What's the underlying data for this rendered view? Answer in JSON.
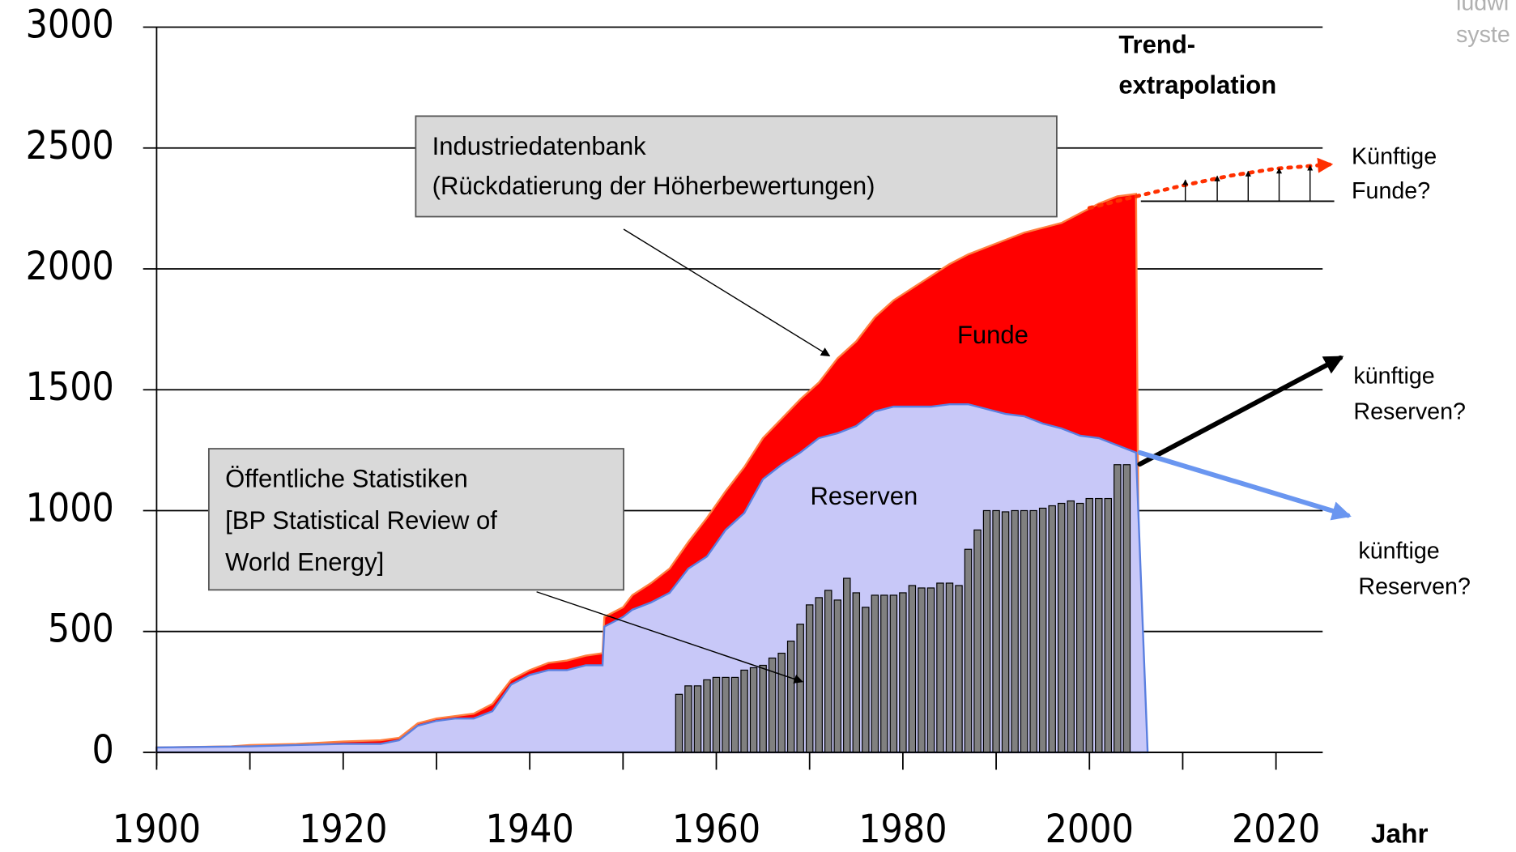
{
  "chart_data": {
    "type": "area",
    "xlim": [
      1900,
      2025
    ],
    "ylim": [
      0,
      3000
    ],
    "xticks": [
      1900,
      1920,
      1940,
      1960,
      1980,
      2000,
      2020
    ],
    "xminorticks": [
      1910,
      1930,
      1950,
      1970,
      1990,
      2010
    ],
    "yticks": [
      0,
      500,
      1000,
      1500,
      2000,
      2500,
      3000
    ],
    "grid": true,
    "x_label": "Jahr",
    "watermark": [
      "ludwi",
      "syste"
    ],
    "series": [
      {
        "name": "Funde",
        "color": "#ff0000",
        "x": [
          1900,
          1908,
          1910,
          1915,
          1920,
          1924,
          1926,
          1928,
          1930,
          1932,
          1934,
          1936,
          1938,
          1940,
          1942,
          1944,
          1946,
          1947.8,
          1948,
          1950,
          1951,
          1953,
          1955,
          1957,
          1959,
          1961,
          1963,
          1965,
          1967,
          1969,
          1971,
          1973,
          1975,
          1977,
          1979,
          1981,
          1983,
          1985,
          1987,
          1989,
          1991,
          1993,
          1995,
          1997,
          1999,
          2001,
          2003,
          2005
        ],
        "values": [
          20,
          25,
          30,
          35,
          45,
          50,
          60,
          120,
          140,
          150,
          160,
          200,
          300,
          340,
          370,
          380,
          400,
          410,
          560,
          600,
          650,
          700,
          760,
          870,
          970,
          1080,
          1180,
          1300,
          1380,
          1460,
          1530,
          1630,
          1700,
          1800,
          1870,
          1920,
          1970,
          2020,
          2060,
          2090,
          2120,
          2150,
          2170,
          2190,
          2230,
          2270,
          2300,
          2310
        ]
      },
      {
        "name": "Reserven",
        "color": "#c8c8f8",
        "x": [
          1900,
          1910,
          1915,
          1920,
          1924,
          1926,
          1928,
          1930,
          1932,
          1934,
          1936,
          1938,
          1940,
          1942,
          1944,
          1946,
          1947.8,
          1948,
          1950,
          1951,
          1953,
          1955,
          1957,
          1959,
          1961,
          1963,
          1965,
          1967,
          1969,
          1971,
          1973,
          1975,
          1977,
          1979,
          1981,
          1983,
          1985,
          1987,
          1989,
          1991,
          1993,
          1995,
          1997,
          1999,
          2001,
          2003,
          2005
        ],
        "values": [
          20,
          25,
          30,
          35,
          35,
          50,
          110,
          130,
          140,
          140,
          170,
          280,
          320,
          340,
          340,
          360,
          360,
          520,
          560,
          590,
          620,
          660,
          760,
          810,
          920,
          990,
          1130,
          1190,
          1240,
          1300,
          1320,
          1350,
          1410,
          1430,
          1430,
          1430,
          1440,
          1440,
          1420,
          1400,
          1390,
          1360,
          1340,
          1310,
          1300,
          1270,
          1240
        ]
      }
    ],
    "bars": {
      "x": [
        1956,
        1957,
        1958,
        1959,
        1960,
        1961,
        1962,
        1963,
        1964,
        1965,
        1966,
        1967,
        1968,
        1969,
        1970,
        1971,
        1972,
        1973,
        1974,
        1975,
        1976,
        1977,
        1978,
        1979,
        1980,
        1981,
        1982,
        1983,
        1984,
        1985,
        1986,
        1987,
        1988,
        1989,
        1990,
        1991,
        1992,
        1993,
        1994,
        1995,
        1996,
        1997,
        1998,
        1999,
        2000,
        2001,
        2002,
        2003,
        2004
      ],
      "values": [
        240,
        275,
        275,
        300,
        310,
        310,
        310,
        340,
        350,
        360,
        390,
        410,
        460,
        530,
        610,
        640,
        670,
        630,
        720,
        660,
        600,
        650,
        650,
        650,
        660,
        690,
        680,
        680,
        700,
        700,
        690,
        840,
        920,
        1000,
        1000,
        995,
        1000,
        1000,
        1000,
        1010,
        1020,
        1030,
        1040,
        1030,
        1050,
        1050,
        1050,
        1190,
        1190
      ],
      "color": "#808080"
    },
    "trends": [
      {
        "color": "#ff3000",
        "style": "dotted",
        "x": [
          2000,
          2005,
          2010,
          2015,
          2020,
          2025.8
        ],
        "values": [
          2252,
          2300,
          2345,
          2385,
          2415,
          2432
        ]
      },
      {
        "color": "#000000",
        "style": "solid",
        "x": [
          2005.4,
          2026.9
        ],
        "values": [
          1192,
          1632
        ]
      },
      {
        "color": "#6a96f0",
        "style": "solid",
        "x": [
          2005.4,
          2027.7
        ],
        "values": [
          1240,
          980
        ]
      }
    ],
    "annotations": {
      "trend_title": [
        "Trend-",
        "extrapolation"
      ],
      "future_finds": [
        "Künftige",
        "Funde?"
      ],
      "future_reserves_1": [
        "künftige",
        "Reserven?"
      ],
      "future_reserves_2": [
        "künftige",
        "Reserven?"
      ],
      "industry_box": [
        "Industriedatenbank",
        "(Rückdatierung der Höherbewertungen)"
      ],
      "public_box": [
        "Öffentliche Statistiken",
        "[BP Statistical Review of",
        "World Energy]"
      ],
      "funde_label": "Funde",
      "reserven_label": "Reserven"
    }
  }
}
